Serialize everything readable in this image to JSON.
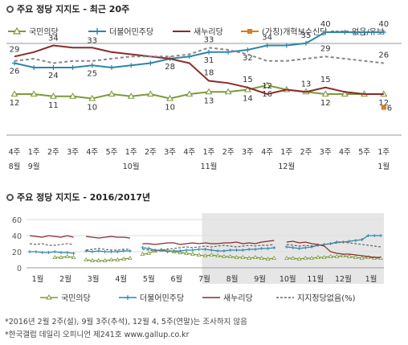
{
  "chart_data": [
    {
      "type": "line",
      "title": "주요 정당 지지도 - 최근 20주",
      "categories": [
        {
          "week": "4주",
          "month": "8월"
        },
        {
          "week": "1주",
          "month": "9월"
        },
        {
          "week": "2주",
          "month": ""
        },
        {
          "week": "3주",
          "month": ""
        },
        {
          "week": "4주",
          "month": ""
        },
        {
          "week": "5주",
          "month": ""
        },
        {
          "week": "1주",
          "month": "10월"
        },
        {
          "week": "2주",
          "month": ""
        },
        {
          "week": "3주",
          "month": ""
        },
        {
          "week": "4주",
          "month": ""
        },
        {
          "week": "1주",
          "month": "11월"
        },
        {
          "week": "2주",
          "month": ""
        },
        {
          "week": "3주",
          "month": ""
        },
        {
          "week": "4주",
          "month": ""
        },
        {
          "week": "1주",
          "month": "12월"
        },
        {
          "week": "2주",
          "month": ""
        },
        {
          "week": "3주",
          "month": ""
        },
        {
          "week": "4주",
          "month": ""
        },
        {
          "week": "5주",
          "month": ""
        },
        {
          "week": "1주",
          "month": "1월"
        }
      ],
      "ylim": [
        0,
        45
      ],
      "series": [
        {
          "name": "국민의당",
          "color": "#7a9a3a",
          "marker": "triangle",
          "values": [
            12,
            12,
            11,
            11,
            10,
            12,
            11,
            12,
            10,
            12,
            13,
            13,
            14,
            16,
            14,
            13,
            12,
            12,
            12,
            12
          ],
          "labels": {
            "0": "12",
            "2": "11",
            "4": "10",
            "8": "10",
            "10": "13",
            "12": "14",
            "13": "16",
            "16": "12",
            "19": "12"
          }
        },
        {
          "name": "더불어민주당",
          "color": "#2e86a8",
          "marker": "plus",
          "values": [
            26,
            24,
            24,
            24,
            25,
            24,
            25,
            26,
            28,
            29,
            31,
            31,
            32,
            34,
            34,
            35,
            40,
            40,
            40,
            40
          ],
          "labels": {
            "0": "26",
            "2": "24",
            "4": "25",
            "8": "28",
            "10": "31",
            "12": "32",
            "13": "34",
            "15": "35",
            "16": "40",
            "19": "40"
          }
        },
        {
          "name": "새누리당",
          "color": "#8b2a2a",
          "marker": "none",
          "values": [
            29,
            31,
            34,
            33,
            33,
            31,
            30,
            29,
            28,
            26,
            18,
            17,
            15,
            12,
            14,
            13,
            15,
            13,
            12,
            12
          ],
          "labels": {
            "0": "29",
            "2": "34",
            "4": "33",
            "10": "18",
            "12": "15",
            "13": "12",
            "15": "13",
            "16": "15"
          }
        },
        {
          "name": "(가칭)개혁보수신당",
          "color": "#e07a1a",
          "marker": "square",
          "values": [
            null,
            null,
            null,
            null,
            null,
            null,
            null,
            null,
            null,
            null,
            null,
            null,
            null,
            null,
            null,
            null,
            null,
            null,
            null,
            6
          ],
          "labels": {
            "19": "6"
          }
        },
        {
          "name": "없음/유보",
          "color": "#888888",
          "marker": "dash",
          "values": [
            27,
            28,
            26,
            27,
            27,
            28,
            29,
            29,
            29,
            30,
            33,
            32,
            30,
            27,
            27,
            28,
            29,
            28,
            27,
            26
          ],
          "labels": {
            "10": "33",
            "16": "29",
            "19": "26"
          }
        }
      ]
    },
    {
      "type": "line",
      "title": "주요 정당 지지도 - 2016/2017년",
      "ylim": [
        0,
        60
      ],
      "yticks": [
        0,
        20,
        40,
        60
      ],
      "months": [
        "1월",
        "2월",
        "3월",
        "4월",
        "5월",
        "6월",
        "7월",
        "8월",
        "9월",
        "10월",
        "11월",
        "12월",
        "1월"
      ],
      "highlight_range_weeks": [
        28,
        53
      ],
      "series": [
        {
          "name": "국민의당",
          "color": "#7a9a3a",
          "values": [
            null,
            null,
            null,
            null,
            13,
            13,
            14,
            13,
            null,
            10,
            9,
            9,
            9,
            10,
            10,
            11,
            12,
            null,
            17,
            18,
            21,
            22,
            22,
            20,
            19,
            18,
            17,
            16,
            15,
            16,
            15,
            14,
            14,
            13,
            13,
            12,
            13,
            12,
            11,
            12,
            null,
            12,
            12,
            11,
            12,
            12,
            13,
            13,
            14,
            14,
            15,
            14,
            13,
            12,
            13,
            12,
            12
          ]
        },
        {
          "name": "더불어민주당",
          "color": "#2e86a8",
          "values": [
            20,
            20,
            19,
            19,
            20,
            19,
            19,
            18,
            null,
            21,
            20,
            21,
            20,
            20,
            20,
            21,
            21,
            null,
            25,
            24,
            22,
            22,
            20,
            21,
            21,
            22,
            22,
            23,
            23,
            22,
            21,
            21,
            22,
            22,
            22,
            23,
            23,
            24,
            24,
            25,
            null,
            26,
            25,
            24,
            25,
            26,
            28,
            29,
            30,
            32,
            32,
            33,
            34,
            35,
            40,
            40,
            40
          ]
        },
        {
          "name": "새누리당",
          "color": "#8b2a2a",
          "values": [
            40,
            39,
            38,
            40,
            39,
            38,
            40,
            38,
            null,
            39,
            38,
            37,
            38,
            39,
            38,
            38,
            37,
            null,
            30,
            30,
            29,
            30,
            31,
            31,
            29,
            30,
            31,
            30,
            31,
            30,
            30,
            31,
            31,
            32,
            30,
            31,
            30,
            32,
            33,
            34,
            null,
            32,
            33,
            31,
            32,
            30,
            29,
            27,
            20,
            18,
            17,
            17,
            16,
            15,
            14,
            13,
            13
          ]
        },
        {
          "name": "지지정당없음(%)",
          "color": "#666666",
          "values": [
            30,
            29,
            30,
            28,
            28,
            29,
            30,
            29,
            null,
            22,
            23,
            24,
            23,
            22,
            22,
            23,
            23,
            null,
            23,
            22,
            21,
            22,
            23,
            24,
            25,
            26,
            25,
            26,
            27,
            26,
            27,
            28,
            27,
            26,
            27,
            28,
            27,
            28,
            28,
            29,
            null,
            29,
            28,
            27,
            28,
            27,
            28,
            29,
            30,
            31,
            32,
            31,
            30,
            29,
            28,
            27,
            26
          ]
        }
      ]
    }
  ],
  "notes": [
    "*2016년 2월 2주(설), 9월 3주(추석), 12월 4, 5주(연말)는 조사하지 않음",
    "*한국갤럽 데일리 오피니언 제241호 www.gallup.co.kr"
  ]
}
